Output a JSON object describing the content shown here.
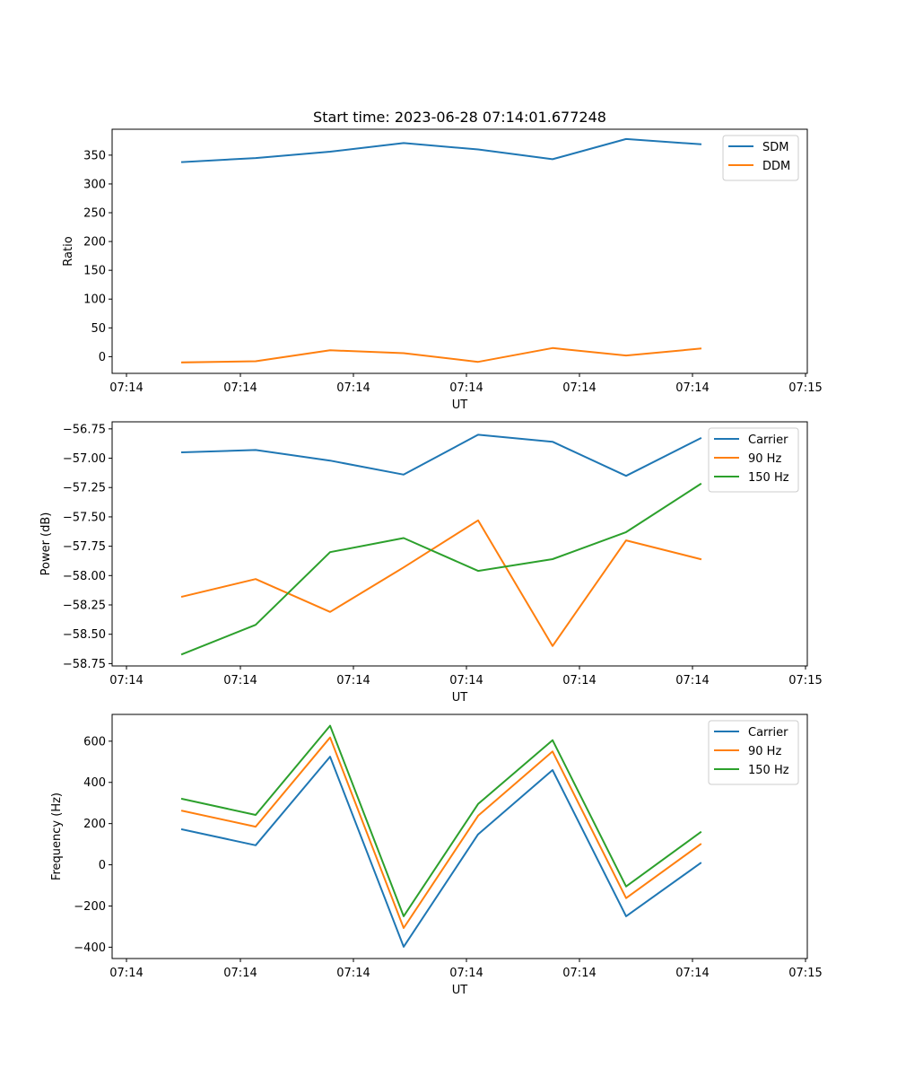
{
  "chart_data": [
    {
      "type": "line",
      "title": "Start time: 2023-06-28 07:14:01.677248",
      "xlabel": "UT",
      "ylabel": "Ratio",
      "x": [
        1,
        2,
        3,
        4,
        5,
        6,
        7,
        8
      ],
      "x_tick_labels": [
        "07:14",
        "07:14",
        "07:14",
        "07:14",
        "07:14",
        "07:14",
        "07:14",
        "07:15"
      ],
      "y_ticks": [
        0,
        50,
        100,
        150,
        200,
        250,
        300,
        350
      ],
      "ylim": [
        -29,
        395
      ],
      "legend": "upper-right",
      "grid": false,
      "series": [
        {
          "name": "SDM",
          "color": "#1f77b4",
          "values": [
            338,
            345,
            356,
            371,
            360,
            343,
            378,
            369
          ]
        },
        {
          "name": "DDM",
          "color": "#ff7f0e",
          "values": [
            -10,
            -8,
            11,
            6,
            -9,
            15,
            2,
            14
          ]
        }
      ]
    },
    {
      "type": "line",
      "title": "",
      "xlabel": "UT",
      "ylabel": "Power (dB)",
      "x": [
        1,
        2,
        3,
        4,
        5,
        6,
        7,
        8
      ],
      "x_tick_labels": [
        "07:14",
        "07:14",
        "07:14",
        "07:14",
        "07:14",
        "07:14",
        "07:14",
        "07:15"
      ],
      "y_ticks": [
        -58.75,
        -58.5,
        -58.25,
        -58.0,
        -57.75,
        -57.5,
        -57.25,
        -57.0,
        -56.75
      ],
      "ylim": [
        -58.77,
        -56.69
      ],
      "legend": "upper-right",
      "grid": false,
      "series": [
        {
          "name": "Carrier",
          "color": "#1f77b4",
          "values": [
            -56.95,
            -56.93,
            -57.02,
            -57.14,
            -56.8,
            -56.86,
            -57.15,
            -56.83
          ]
        },
        {
          "name": "90 Hz",
          "color": "#ff7f0e",
          "values": [
            -58.18,
            -58.03,
            -58.31,
            -57.93,
            -57.53,
            -58.6,
            -57.7,
            -57.86
          ]
        },
        {
          "name": "150 Hz",
          "color": "#2ca02c",
          "values": [
            -58.67,
            -58.42,
            -57.8,
            -57.68,
            -57.96,
            -57.86,
            -57.63,
            -57.22
          ]
        }
      ]
    },
    {
      "type": "line",
      "title": "",
      "xlabel": "UT",
      "ylabel": "Frequency (Hz)",
      "x": [
        1,
        2,
        3,
        4,
        5,
        6,
        7,
        8
      ],
      "x_tick_labels": [
        "07:14",
        "07:14",
        "07:14",
        "07:14",
        "07:14",
        "07:14",
        "07:14",
        "07:15"
      ],
      "y_ticks": [
        -400,
        -200,
        0,
        200,
        400,
        600
      ],
      "ylim": [
        -455,
        730
      ],
      "legend": "upper-right",
      "grid": false,
      "series": [
        {
          "name": "Carrier",
          "color": "#1f77b4",
          "values": [
            172,
            95,
            525,
            -398,
            148,
            460,
            -250,
            8
          ]
        },
        {
          "name": "90 Hz",
          "color": "#ff7f0e",
          "values": [
            262,
            185,
            618,
            -307,
            238,
            550,
            -162,
            100
          ]
        },
        {
          "name": "150 Hz",
          "color": "#2ca02c",
          "values": [
            320,
            242,
            675,
            -250,
            295,
            605,
            -105,
            158
          ]
        }
      ]
    }
  ]
}
